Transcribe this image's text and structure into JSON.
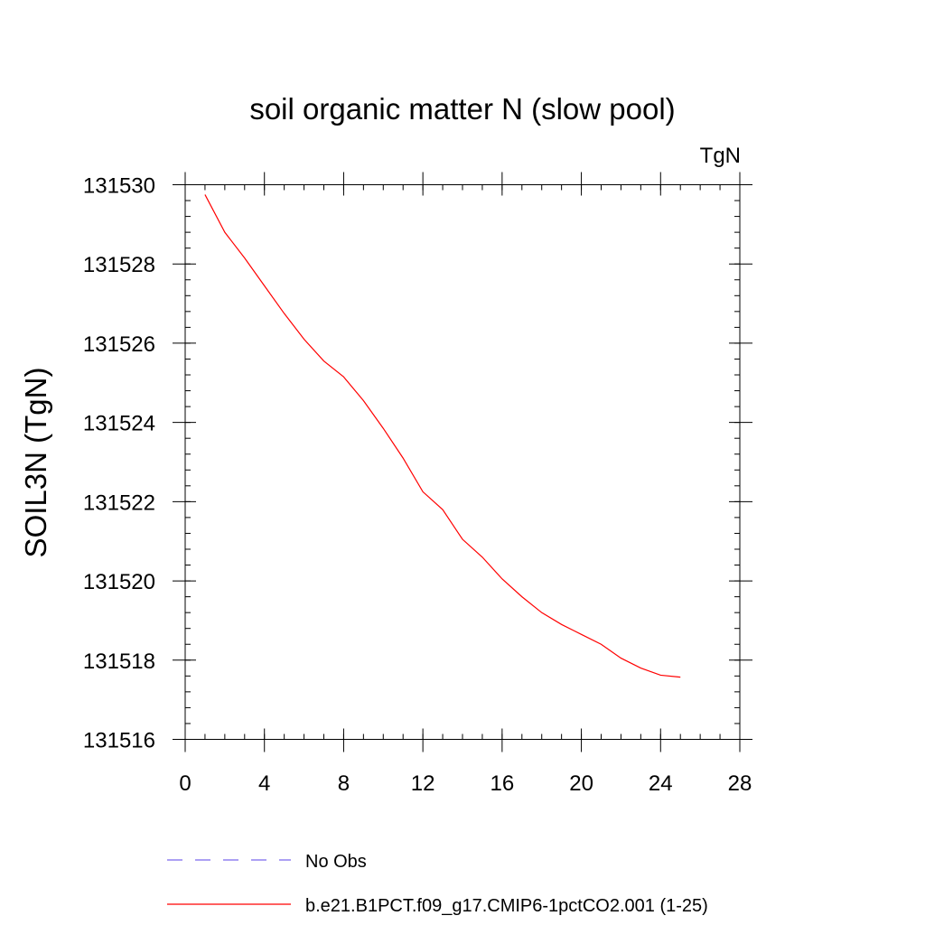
{
  "chart_data": {
    "type": "line",
    "title": "soil organic matter N (slow pool)",
    "units_label": "TgN",
    "xlabel": "",
    "ylabel": "SOIL3N  (TgN)",
    "xlim": [
      0,
      28
    ],
    "ylim": [
      131516,
      131530
    ],
    "x_ticks": [
      "0",
      "4",
      "8",
      "12",
      "16",
      "20",
      "24",
      "28"
    ],
    "y_ticks": [
      "131516",
      "131518",
      "131520",
      "131522",
      "131524",
      "131526",
      "131528",
      "131530"
    ],
    "grid": false,
    "legend_position": "bottom",
    "series": [
      {
        "name": "No Obs",
        "color": "#7b68ee",
        "style": "dashed",
        "x": [],
        "y": []
      },
      {
        "name": "b.e21.B1PCT.f09_g17.CMIP6-1pctCO2.001 (1-25)",
        "color": "#ff0000",
        "style": "solid",
        "x": [
          1,
          2,
          3,
          4,
          5,
          6,
          7,
          8,
          9,
          10,
          11,
          12,
          13,
          14,
          15,
          16,
          17,
          18,
          19,
          20,
          21,
          22,
          23,
          24,
          25
        ],
        "y": [
          131529.75,
          131528.8,
          131528.15,
          131527.45,
          131526.75,
          131526.1,
          131525.55,
          131525.15,
          131524.55,
          131523.85,
          131523.1,
          131522.25,
          131521.8,
          131521.05,
          131520.6,
          131520.05,
          131519.6,
          131519.2,
          131518.9,
          131518.65,
          131518.4,
          131518.05,
          131517.8,
          131517.62,
          131517.57
        ]
      }
    ]
  }
}
